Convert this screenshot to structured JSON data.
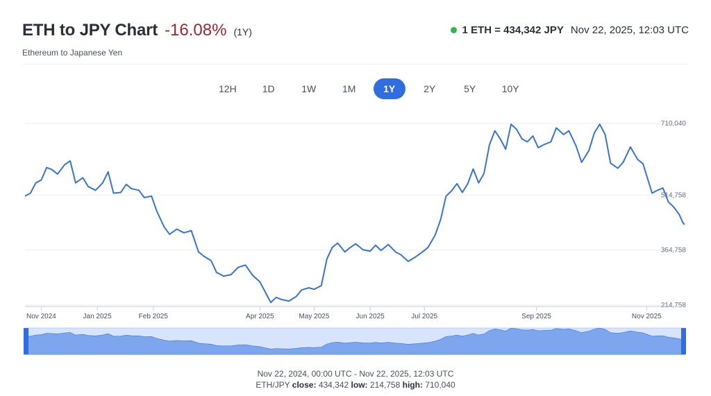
{
  "header": {
    "title": "ETH to JPY Chart",
    "change": "-16.08%",
    "period": "(1Y)",
    "subtitle": "Ethereum to Japanese Yen",
    "price": "1 ETH = 434,342 JPY",
    "timestamp": "Nov 22, 2025, 12:03 UTC"
  },
  "tabs": [
    {
      "label": "12H",
      "active": false
    },
    {
      "label": "1D",
      "active": false
    },
    {
      "label": "1W",
      "active": false
    },
    {
      "label": "1M",
      "active": false
    },
    {
      "label": "1Y",
      "active": true
    },
    {
      "label": "2Y",
      "active": false
    },
    {
      "label": "5Y",
      "active": false
    },
    {
      "label": "10Y",
      "active": false
    }
  ],
  "colors": {
    "line": "#3573d9",
    "navigator_fill": "#7ea6ee",
    "navigator_bg": "#d7e4fb",
    "active_tab": "#2f6de1",
    "change": "#a4262c",
    "live": "#2db84d"
  },
  "chart_data": {
    "type": "line",
    "x_range": [
      "2024-11-22",
      "2025-11-22"
    ],
    "y_ticks": [
      {
        "value": 214758,
        "label": "214,758"
      },
      {
        "value": 364758,
        "label": "364,758"
      },
      {
        "value": 514758,
        "label": "514,758"
      },
      {
        "value": 710040,
        "label": "710,040"
      }
    ],
    "x_ticks": [
      {
        "date": "2024-12-01",
        "label": "Nov 2024"
      },
      {
        "date": "2025-01-01",
        "label": "Jan 2025"
      },
      {
        "date": "2025-02-01",
        "label": "Feb 2025"
      },
      {
        "date": "2025-04-01",
        "label": "Apr 2025"
      },
      {
        "date": "2025-05-01",
        "label": "May 2025"
      },
      {
        "date": "2025-06-01",
        "label": "Jun 2025"
      },
      {
        "date": "2025-07-01",
        "label": "Jul 2025"
      },
      {
        "date": "2025-09-01",
        "label": "Sep 2025"
      },
      {
        "date": "2025-11-01",
        "label": "Nov 2025"
      }
    ],
    "ylim": [
      214758,
      710040
    ],
    "grid": true,
    "series": [
      {
        "values": [
          [
            "2024-11-22",
            512000
          ],
          [
            "2024-11-25",
            520000
          ],
          [
            "2024-11-28",
            548000
          ],
          [
            "2024-12-01",
            556000
          ],
          [
            "2024-12-04",
            590000
          ],
          [
            "2024-12-07",
            584000
          ],
          [
            "2024-12-10",
            572000
          ],
          [
            "2024-12-14",
            598000
          ],
          [
            "2024-12-17",
            608000
          ],
          [
            "2024-12-20",
            548000
          ],
          [
            "2024-12-24",
            562000
          ],
          [
            "2024-12-27",
            538000
          ],
          [
            "2024-12-31",
            528000
          ],
          [
            "2025-01-04",
            548000
          ],
          [
            "2025-01-07",
            578000
          ],
          [
            "2025-01-10",
            520000
          ],
          [
            "2025-01-14",
            522000
          ],
          [
            "2025-01-17",
            544000
          ],
          [
            "2025-01-20",
            532000
          ],
          [
            "2025-01-24",
            528000
          ],
          [
            "2025-01-27",
            508000
          ],
          [
            "2025-01-31",
            512000
          ],
          [
            "2025-02-03",
            470000
          ],
          [
            "2025-02-07",
            428000
          ],
          [
            "2025-02-10",
            408000
          ],
          [
            "2025-02-14",
            422000
          ],
          [
            "2025-02-18",
            412000
          ],
          [
            "2025-02-22",
            418000
          ],
          [
            "2025-02-26",
            360000
          ],
          [
            "2025-03-01",
            348000
          ],
          [
            "2025-03-05",
            336000
          ],
          [
            "2025-03-08",
            304000
          ],
          [
            "2025-03-12",
            294000
          ],
          [
            "2025-03-16",
            298000
          ],
          [
            "2025-03-20",
            318000
          ],
          [
            "2025-03-24",
            324000
          ],
          [
            "2025-03-28",
            296000
          ],
          [
            "2025-04-01",
            278000
          ],
          [
            "2025-04-04",
            250000
          ],
          [
            "2025-04-07",
            222000
          ],
          [
            "2025-04-10",
            236000
          ],
          [
            "2025-04-13",
            230000
          ],
          [
            "2025-04-17",
            226000
          ],
          [
            "2025-04-21",
            238000
          ],
          [
            "2025-04-24",
            256000
          ],
          [
            "2025-04-28",
            262000
          ],
          [
            "2025-05-01",
            258000
          ],
          [
            "2025-05-05",
            268000
          ],
          [
            "2025-05-08",
            340000
          ],
          [
            "2025-05-11",
            372000
          ],
          [
            "2025-05-14",
            384000
          ],
          [
            "2025-05-18",
            360000
          ],
          [
            "2025-05-21",
            372000
          ],
          [
            "2025-05-24",
            382000
          ],
          [
            "2025-05-28",
            366000
          ],
          [
            "2025-06-01",
            362000
          ],
          [
            "2025-06-04",
            378000
          ],
          [
            "2025-06-07",
            364000
          ],
          [
            "2025-06-11",
            380000
          ],
          [
            "2025-06-15",
            360000
          ],
          [
            "2025-06-18",
            352000
          ],
          [
            "2025-06-22",
            334000
          ],
          [
            "2025-06-26",
            346000
          ],
          [
            "2025-06-30",
            360000
          ],
          [
            "2025-07-03",
            372000
          ],
          [
            "2025-07-07",
            406000
          ],
          [
            "2025-07-10",
            448000
          ],
          [
            "2025-07-13",
            512000
          ],
          [
            "2025-07-16",
            526000
          ],
          [
            "2025-07-19",
            546000
          ],
          [
            "2025-07-22",
            522000
          ],
          [
            "2025-07-25",
            546000
          ],
          [
            "2025-07-28",
            586000
          ],
          [
            "2025-07-31",
            548000
          ],
          [
            "2025-08-03",
            574000
          ],
          [
            "2025-08-06",
            652000
          ],
          [
            "2025-08-09",
            690000
          ],
          [
            "2025-08-12",
            668000
          ],
          [
            "2025-08-15",
            640000
          ],
          [
            "2025-08-18",
            708000
          ],
          [
            "2025-08-21",
            694000
          ],
          [
            "2025-08-24",
            668000
          ],
          [
            "2025-08-27",
            660000
          ],
          [
            "2025-08-30",
            676000
          ],
          [
            "2025-09-02",
            644000
          ],
          [
            "2025-09-05",
            652000
          ],
          [
            "2025-09-09",
            660000
          ],
          [
            "2025-09-12",
            698000
          ],
          [
            "2025-09-16",
            680000
          ],
          [
            "2025-09-19",
            690000
          ],
          [
            "2025-09-23",
            648000
          ],
          [
            "2025-09-26",
            604000
          ],
          [
            "2025-09-30",
            636000
          ],
          [
            "2025-10-03",
            684000
          ],
          [
            "2025-10-06",
            708000
          ],
          [
            "2025-10-09",
            680000
          ],
          [
            "2025-10-12",
            602000
          ],
          [
            "2025-10-16",
            588000
          ],
          [
            "2025-10-19",
            604000
          ],
          [
            "2025-10-23",
            646000
          ],
          [
            "2025-10-27",
            612000
          ],
          [
            "2025-10-30",
            600000
          ],
          [
            "2025-11-01",
            568000
          ],
          [
            "2025-11-04",
            520000
          ],
          [
            "2025-11-07",
            528000
          ],
          [
            "2025-11-10",
            534000
          ],
          [
            "2025-11-13",
            496000
          ],
          [
            "2025-11-16",
            482000
          ],
          [
            "2025-11-19",
            462000
          ],
          [
            "2025-11-21",
            440000
          ],
          [
            "2025-11-22",
            434342
          ]
        ]
      }
    ]
  },
  "footer": {
    "range": "Nov 22, 2024, 00:00 UTC - Nov 22, 2025, 12:03 UTC",
    "pair": "ETH/JPY",
    "close_label": "close:",
    "close": "434,342",
    "low_label": "low:",
    "low": "214,758",
    "high_label": "high:",
    "high": "710,040"
  }
}
